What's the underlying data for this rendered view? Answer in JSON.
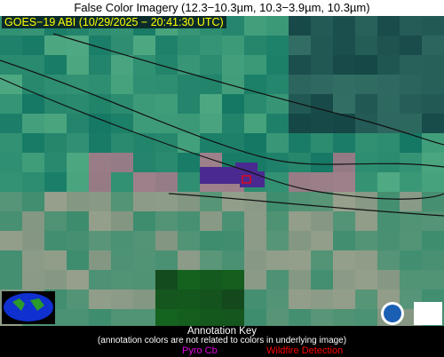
{
  "header": {
    "title": "False Color Imagery (12.3−10.3µm, 10.3−3.9µm, 10.3µm)"
  },
  "image": {
    "label": "GOES−19 ABI (10/29/2025 − 20:41:30 UTC)"
  },
  "key": {
    "title": "Annotation Key",
    "note": "(annotation colors are not related to colors in underlying image)",
    "items": [
      "Pyro Cb",
      "Wildfire Detection"
    ]
  }
}
